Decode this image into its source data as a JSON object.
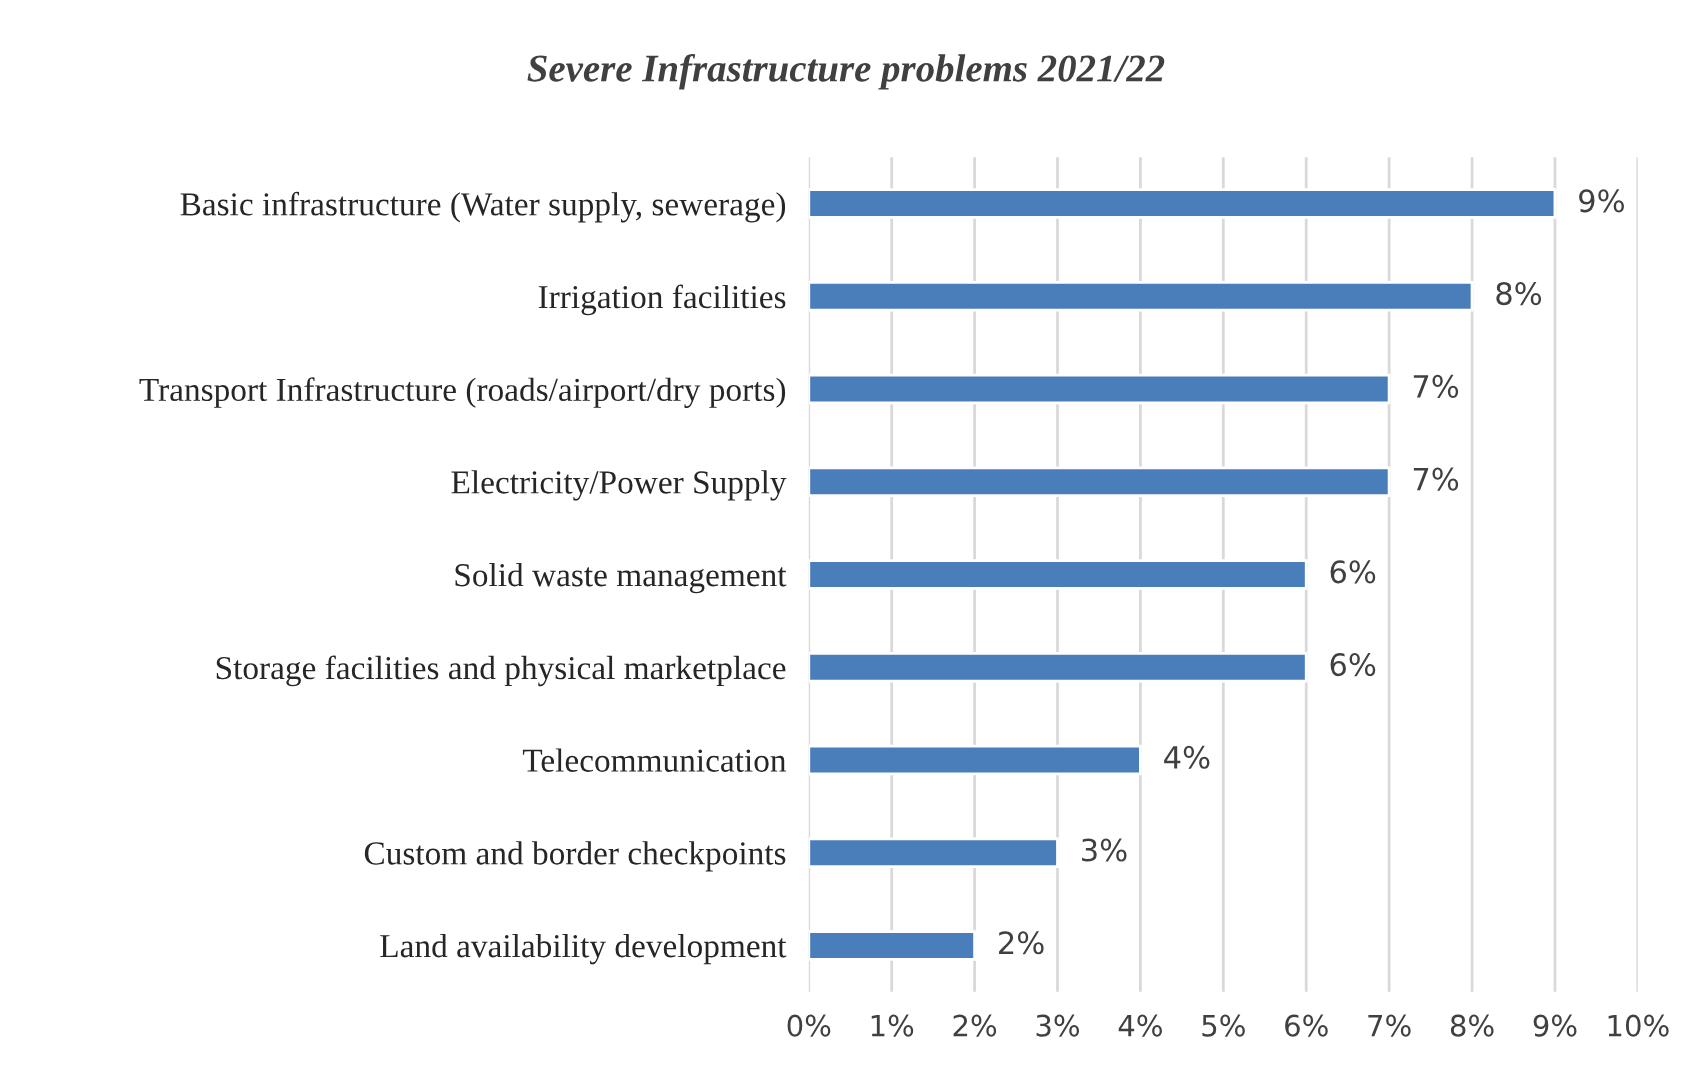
{
  "chart_data": {
    "type": "bar",
    "orientation": "horizontal",
    "title": "Severe Infrastructure problems 2021/22",
    "categories": [
      "Basic infrastructure (Water supply, sewerage)",
      "Irrigation facilities",
      "Transport Infrastructure (roads/airport/dry ports)",
      "Electricity/Power Supply",
      "Solid waste management",
      "Storage facilities and physical marketplace",
      "Telecommunication",
      "Custom and border checkpoints",
      "Land availability development"
    ],
    "values": [
      9,
      8,
      7,
      7,
      6,
      6,
      4,
      3,
      2
    ],
    "value_labels": [
      "9%",
      "8%",
      "7%",
      "7%",
      "6%",
      "6%",
      "4%",
      "3%",
      "2%"
    ],
    "color": "#4a7ebb",
    "xlim": [
      0,
      10
    ],
    "xticks": [
      {
        "value": 0,
        "label": "0%"
      },
      {
        "value": 1,
        "label": "1%"
      },
      {
        "value": 2,
        "label": "2%"
      },
      {
        "value": 3,
        "label": "3%"
      },
      {
        "value": 4,
        "label": "4%"
      },
      {
        "value": 5,
        "label": "5%"
      },
      {
        "value": 6,
        "label": "6%"
      },
      {
        "value": 7,
        "label": "7%"
      },
      {
        "value": 8,
        "label": "8%"
      },
      {
        "value": 9,
        "label": "9%"
      },
      {
        "value": 10,
        "label": "10%"
      }
    ],
    "grid": "x",
    "legend": false
  }
}
